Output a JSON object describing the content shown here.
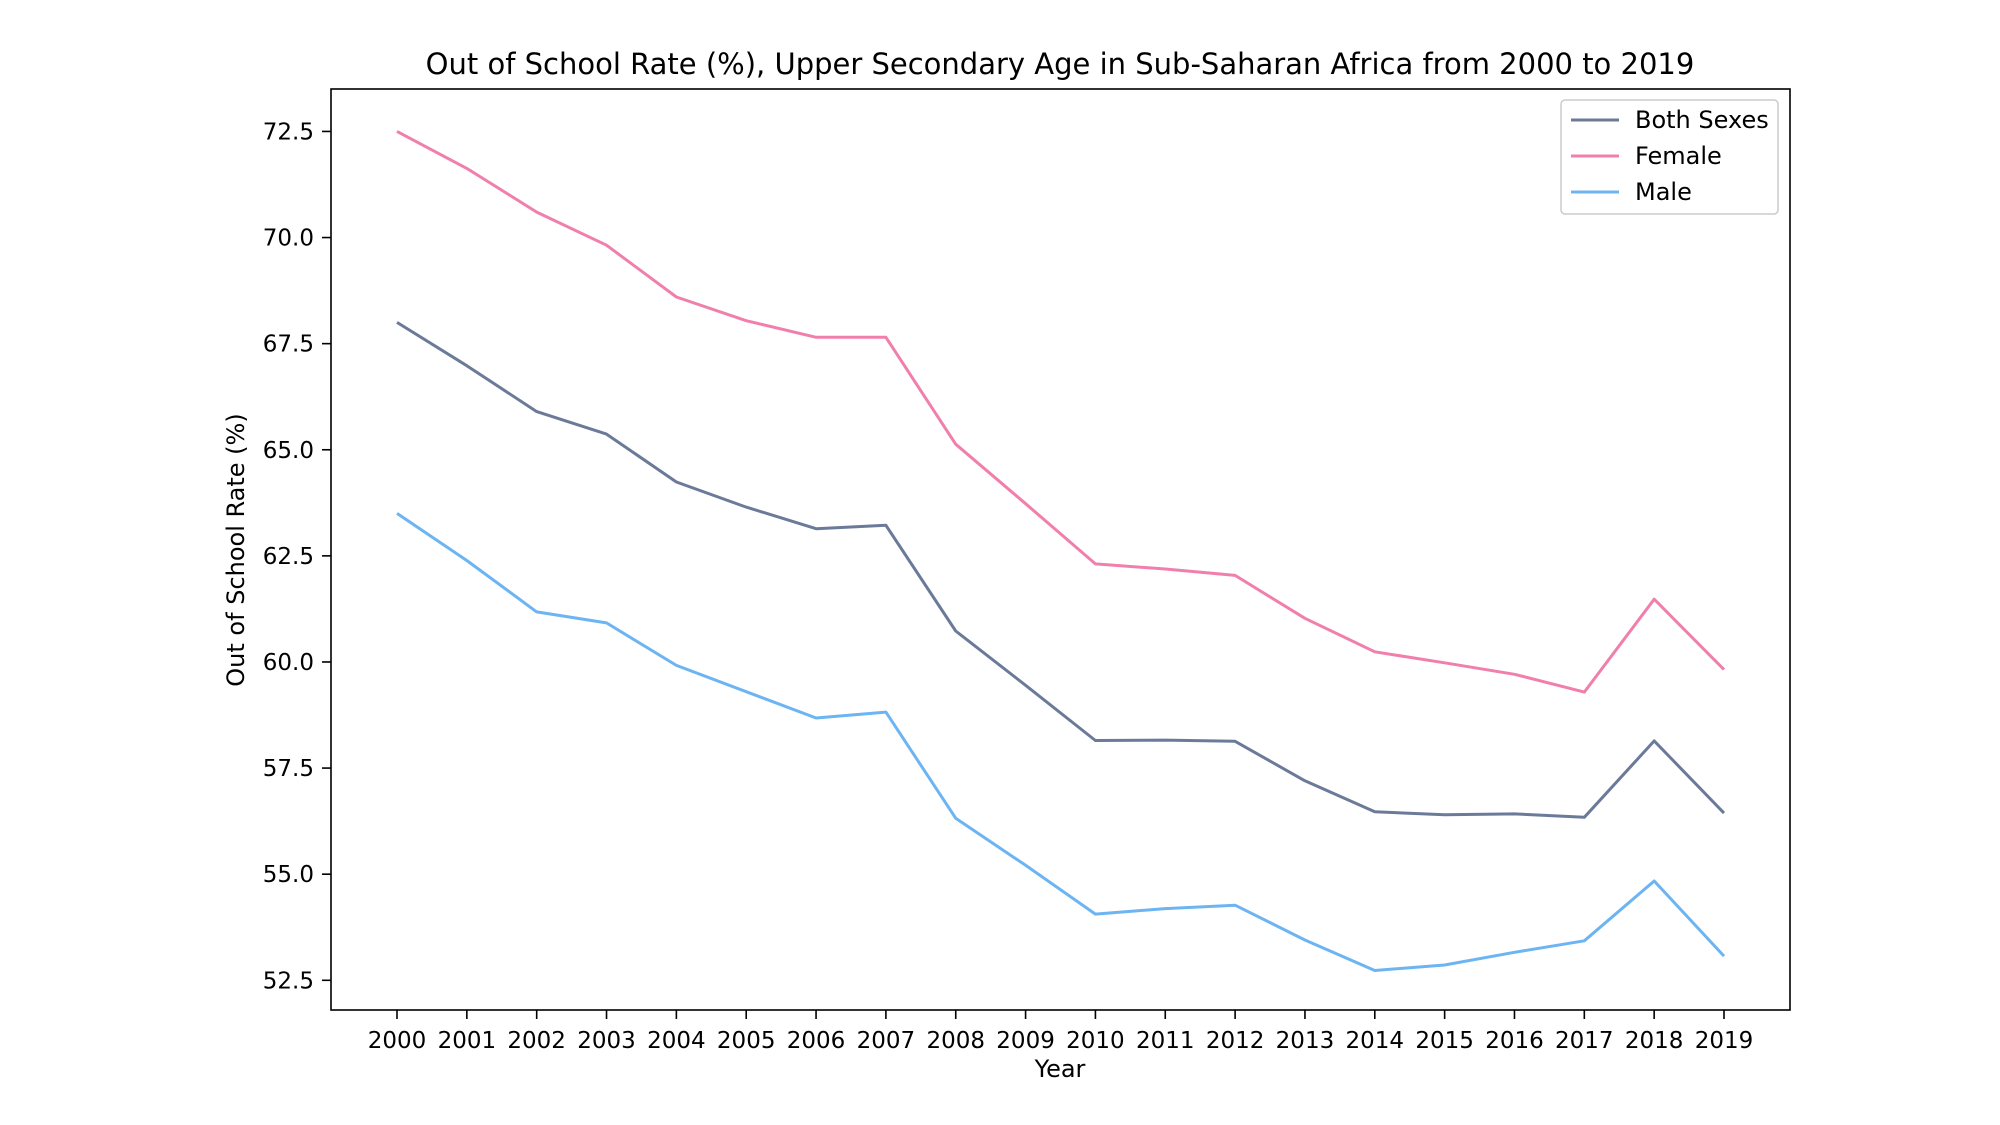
{
  "chart_data": {
    "type": "line",
    "title": "Out of School Rate (%), Upper Secondary Age in Sub-Saharan Africa from 2000 to 2019",
    "xlabel": "Year",
    "ylabel": "Out of School Rate (%)",
    "x": [
      2000,
      2001,
      2002,
      2003,
      2004,
      2005,
      2006,
      2007,
      2008,
      2009,
      2010,
      2011,
      2012,
      2013,
      2014,
      2015,
      2016,
      2017,
      2018,
      2019
    ],
    "x_tick_labels": [
      "2000",
      "2001",
      "2002",
      "2003",
      "2004",
      "2005",
      "2006",
      "2007",
      "2008",
      "2009",
      "2010",
      "2011",
      "2012",
      "2013",
      "2014",
      "2015",
      "2016",
      "2017",
      "2018",
      "2019"
    ],
    "ylim": [
      51.8,
      73.5
    ],
    "y_ticks": [
      52.5,
      55.0,
      57.5,
      60.0,
      62.5,
      65.0,
      67.5,
      70.0,
      72.5
    ],
    "y_tick_labels": [
      "52.5",
      "55.0",
      "57.5",
      "60.0",
      "62.5",
      "65.0",
      "67.5",
      "70.0",
      "72.5"
    ],
    "grid": false,
    "legend_position": "top-right",
    "series": [
      {
        "name": "Both Sexes",
        "color": "#6b7a99",
        "values": [
          68.0,
          66.98,
          65.9,
          65.37,
          64.24,
          63.65,
          63.14,
          63.22,
          60.73,
          59.45,
          58.15,
          58.16,
          58.13,
          57.2,
          56.47,
          56.4,
          56.42,
          56.34,
          58.14,
          56.44
        ]
      },
      {
        "name": "Female",
        "color": "#f07fac",
        "values": [
          72.5,
          71.63,
          70.6,
          69.82,
          68.6,
          68.04,
          67.65,
          67.65,
          65.13,
          63.73,
          62.31,
          62.19,
          62.04,
          61.03,
          60.24,
          59.98,
          59.71,
          59.29,
          61.48,
          59.82
        ]
      },
      {
        "name": "Male",
        "color": "#6cb4f2",
        "values": [
          63.5,
          62.39,
          61.18,
          60.92,
          59.92,
          59.3,
          58.68,
          58.82,
          56.32,
          55.21,
          54.06,
          54.19,
          54.27,
          53.45,
          52.73,
          52.86,
          53.16,
          53.43,
          54.84,
          53.07
        ]
      }
    ]
  }
}
